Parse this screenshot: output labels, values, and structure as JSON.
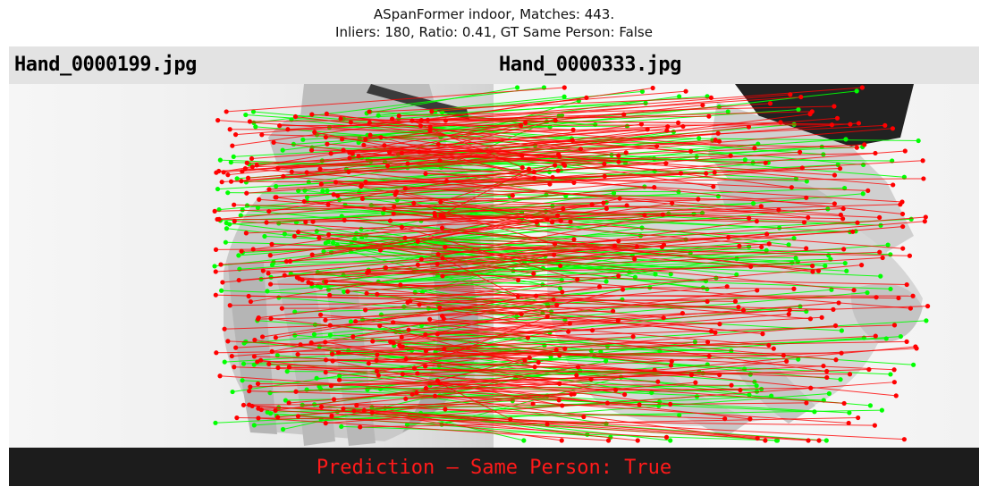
{
  "figure": {
    "title_line1": "ASpanFormer indoor, Matches: 443.",
    "title_line2": "Inliers: 180, Ratio: 0.41, GT Same Person: False"
  },
  "images": {
    "left_filename": "Hand_0000199.jpg",
    "right_filename": "Hand_0000333.jpg"
  },
  "matches": {
    "total": 443,
    "inliers": 180,
    "ratio": 0.41
  },
  "prediction": {
    "text": "Prediction — Same Person: True"
  },
  "colors": {
    "inlier": "#00ff00",
    "outlier": "#ff0000",
    "footer_bg": "#1c1c1c",
    "header_bg": "#e3e3e3"
  }
}
